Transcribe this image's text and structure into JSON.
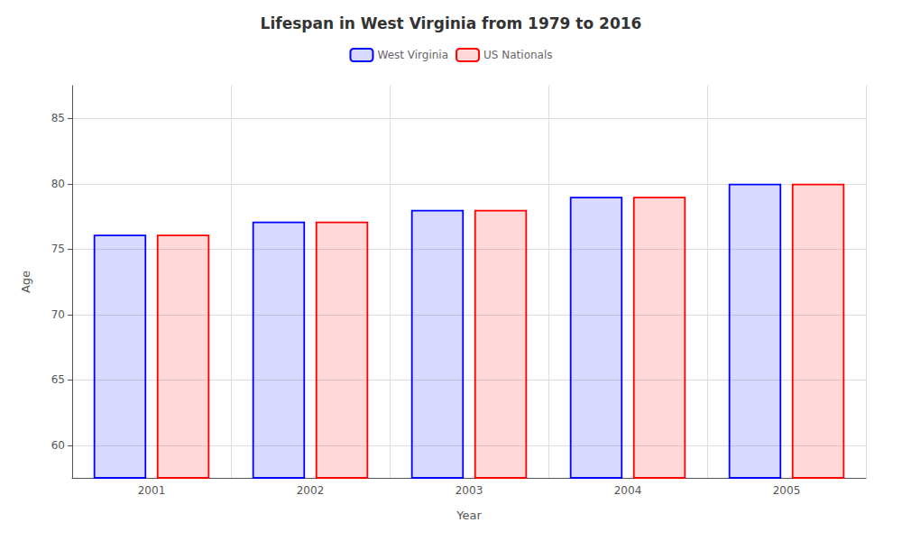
{
  "chart_data": {
    "type": "bar",
    "title": "Lifespan in West Virginia from 1979 to 2016",
    "x_label": "Year",
    "y_label": "Age",
    "categories": [
      "2001",
      "2002",
      "2003",
      "2004",
      "2005"
    ],
    "series": [
      {
        "name": "West Virginia",
        "color": "#0000ff",
        "values": [
          76.1,
          77.1,
          78.0,
          79.0,
          80.0
        ]
      },
      {
        "name": "US Nationals",
        "color": "#ff0000",
        "values": [
          76.1,
          77.1,
          78.0,
          79.0,
          80.0
        ]
      }
    ],
    "ylim": [
      57.5,
      87.5
    ],
    "yticks": [
      60,
      65,
      70,
      75,
      80,
      85
    ],
    "grid": true,
    "legend": "top"
  }
}
